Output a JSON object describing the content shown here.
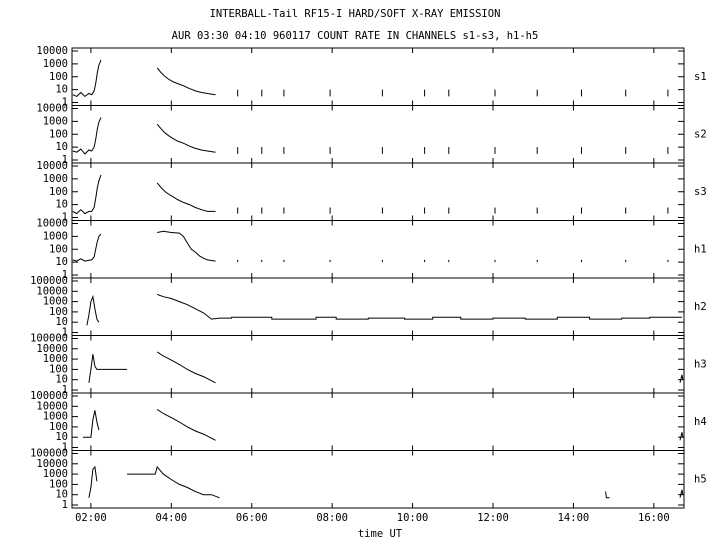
{
  "chart_data": [
    {
      "type": "line",
      "title": "INTERBALL-Tail RF15-I HARD/SOFT X-RAY EMISSION",
      "subtitle": "AUR 03:30 04:10 960117  COUNT RATE IN CHANNELS s1-s3, h1-h5",
      "label": "s1",
      "log": true,
      "color": "#000000",
      "xlim": [
        1.53,
        16.75
      ],
      "ylim": [
        1,
        10000
      ],
      "yticks": [
        1,
        10,
        100,
        1000,
        10000
      ],
      "x": [
        1.55,
        1.65,
        1.75,
        1.85,
        1.95,
        2.02,
        2.08,
        2.12,
        2.16,
        2.2,
        2.25,
        3.0,
        3.65,
        3.75,
        3.85,
        3.95,
        4.05,
        4.15,
        4.3,
        4.45,
        4.6,
        4.75,
        4.9,
        5.1,
        5.3,
        5.65,
        5.65,
        5.7,
        6.25,
        6.25,
        6.3,
        6.8,
        6.8,
        6.85,
        7.95,
        7.95,
        8.0,
        9.25,
        9.25,
        9.3,
        10.3,
        10.3,
        10.35,
        10.9,
        10.9,
        10.95,
        12.05,
        12.05,
        12.1,
        13.1,
        13.1,
        13.15,
        14.2,
        14.2,
        14.25,
        15.3,
        15.3,
        15.35,
        16.35,
        16.35
      ],
      "values": [
        4,
        3,
        6,
        3,
        5,
        4,
        8,
        30,
        200,
        800,
        2000,
        null,
        500,
        200,
        100,
        60,
        40,
        30,
        20,
        12,
        8,
        6,
        5,
        4,
        null,
        3,
        10,
        null,
        3,
        10,
        null,
        3,
        10,
        null,
        3,
        10,
        null,
        3,
        10,
        null,
        3,
        10,
        null,
        3,
        10,
        null,
        3,
        10,
        null,
        3,
        10,
        null,
        3,
        10,
        null,
        3,
        10,
        null,
        3,
        10
      ]
    },
    {
      "type": "line",
      "label": "s2",
      "log": true,
      "color": "#000000",
      "xlim": [
        1.53,
        16.75
      ],
      "ylim": [
        1,
        10000
      ],
      "yticks": [
        1,
        10,
        100,
        1000,
        10000
      ],
      "x": [
        1.55,
        1.65,
        1.75,
        1.85,
        1.95,
        2.02,
        2.08,
        2.12,
        2.16,
        2.2,
        2.25,
        3.0,
        3.65,
        3.75,
        3.85,
        3.95,
        4.05,
        4.15,
        4.3,
        4.45,
        4.6,
        4.75,
        4.9,
        5.1,
        5.3,
        5.65,
        5.65,
        5.7,
        6.25,
        6.25,
        6.3,
        6.8,
        6.8,
        6.85,
        7.95,
        7.95,
        8.0,
        9.25,
        9.25,
        9.3,
        10.3,
        10.3,
        10.35,
        10.9,
        10.9,
        10.95,
        12.05,
        12.05,
        12.1,
        13.1,
        13.1,
        13.15,
        14.2,
        14.2,
        14.25,
        15.3,
        15.3,
        15.35,
        16.35,
        16.35
      ],
      "values": [
        5,
        4,
        7,
        3,
        6,
        5,
        10,
        40,
        250,
        900,
        2000,
        null,
        600,
        250,
        120,
        70,
        45,
        30,
        20,
        12,
        8,
        6,
        5,
        4,
        null,
        3,
        10,
        null,
        3,
        10,
        null,
        3,
        10,
        null,
        3,
        10,
        null,
        3,
        10,
        null,
        3,
        10,
        null,
        3,
        10,
        null,
        3,
        10,
        null,
        3,
        10,
        null,
        3,
        10,
        null,
        3,
        10,
        null,
        3,
        10
      ]
    },
    {
      "type": "line",
      "label": "s3",
      "log": true,
      "color": "#000000",
      "xlim": [
        1.53,
        16.75
      ],
      "ylim": [
        1,
        10000
      ],
      "yticks": [
        1,
        10,
        100,
        1000,
        10000
      ],
      "x": [
        1.55,
        1.65,
        1.75,
        1.85,
        1.95,
        2.02,
        2.08,
        2.12,
        2.16,
        2.2,
        2.25,
        3.0,
        3.65,
        3.75,
        3.85,
        3.95,
        4.05,
        4.15,
        4.3,
        4.45,
        4.6,
        4.75,
        4.9,
        5.1,
        5.3,
        5.65,
        5.65,
        5.7,
        6.25,
        6.25,
        6.3,
        6.8,
        6.8,
        6.85,
        7.95,
        7.95,
        8.0,
        9.25,
        9.25,
        9.3,
        10.3,
        10.3,
        10.35,
        10.9,
        10.9,
        10.95,
        12.05,
        12.05,
        12.1,
        13.1,
        13.1,
        13.15,
        14.2,
        14.2,
        14.25,
        15.3,
        15.3,
        15.35,
        16.35,
        16.35
      ],
      "values": [
        3,
        2,
        4,
        2,
        3,
        3,
        6,
        30,
        200,
        700,
        2000,
        null,
        500,
        200,
        100,
        60,
        40,
        25,
        15,
        10,
        6,
        4,
        3,
        3,
        null,
        2,
        6,
        null,
        2,
        6,
        null,
        2,
        6,
        null,
        2,
        6,
        null,
        2,
        6,
        null,
        2,
        6,
        null,
        2,
        6,
        null,
        2,
        6,
        null,
        2,
        6,
        null,
        2,
        6,
        null,
        2,
        6,
        null,
        2,
        6
      ]
    },
    {
      "type": "line",
      "label": "h1",
      "log": true,
      "color": "#000000",
      "xlim": [
        1.53,
        16.75
      ],
      "ylim": [
        1,
        10000
      ],
      "yticks": [
        1,
        10,
        100,
        1000,
        10000
      ],
      "x": [
        1.55,
        1.65,
        1.75,
        1.85,
        1.95,
        2.02,
        2.08,
        2.12,
        2.16,
        2.2,
        2.25,
        3.0,
        3.65,
        3.8,
        4.0,
        4.2,
        4.3,
        4.4,
        4.5,
        4.6,
        4.7,
        4.8,
        4.9,
        5.1,
        5.3,
        5.65,
        5.65,
        5.7,
        6.25,
        6.25,
        6.3,
        6.8,
        6.8,
        6.85,
        7.95,
        7.95,
        8.0,
        9.25,
        9.25,
        9.3,
        10.3,
        10.3,
        10.35,
        10.9,
        10.9,
        10.95,
        12.05,
        12.05,
        12.1,
        13.1,
        13.1,
        13.15,
        14.2,
        14.2,
        14.25,
        15.3,
        15.3,
        15.35,
        16.35,
        16.35
      ],
      "values": [
        15,
        12,
        18,
        12,
        14,
        15,
        25,
        100,
        400,
        1000,
        1500,
        null,
        2000,
        2500,
        2000,
        1800,
        1000,
        300,
        100,
        60,
        30,
        20,
        15,
        12,
        null,
        10,
        15,
        null,
        10,
        15,
        null,
        10,
        15,
        null,
        10,
        15,
        null,
        10,
        15,
        null,
        10,
        15,
        null,
        10,
        15,
        null,
        10,
        15,
        null,
        10,
        15,
        null,
        10,
        15,
        null,
        10,
        15,
        null,
        10,
        15
      ]
    },
    {
      "type": "line",
      "label": "h2",
      "log": true,
      "color": "#000000",
      "xlim": [
        1.53,
        16.75
      ],
      "ylim": [
        1,
        100000
      ],
      "yticks": [
        1,
        10,
        100,
        1000,
        10000,
        100000
      ],
      "x": [
        1.9,
        1.95,
        2.0,
        2.05,
        2.1,
        2.15,
        2.2,
        3.0,
        3.65,
        3.8,
        4.0,
        4.2,
        4.4,
        4.6,
        4.8,
        4.9,
        5.0,
        5.2,
        5.5,
        5.5,
        6.5,
        6.5,
        7.6,
        7.6,
        8.1,
        8.1,
        8.9,
        8.9,
        9.8,
        9.8,
        10.5,
        10.5,
        11.2,
        11.2,
        12.0,
        12.0,
        12.8,
        12.8,
        13.6,
        13.6,
        14.4,
        14.4,
        15.2,
        15.2,
        15.9,
        15.9,
        16.7
      ],
      "values": [
        5,
        50,
        1000,
        3000,
        200,
        20,
        10,
        null,
        5000,
        3000,
        2000,
        1000,
        500,
        200,
        80,
        40,
        20,
        25,
        25,
        30,
        30,
        20,
        20,
        30,
        30,
        20,
        20,
        25,
        25,
        20,
        20,
        30,
        30,
        20,
        20,
        25,
        25,
        20,
        20,
        30,
        30,
        20,
        20,
        25,
        25,
        30,
        30
      ]
    },
    {
      "type": "line",
      "label": "h3",
      "log": true,
      "color": "#000000",
      "xlim": [
        1.53,
        16.75
      ],
      "ylim": [
        1,
        100000
      ],
      "yticks": [
        1,
        10,
        100,
        1000,
        10000,
        100000
      ],
      "x": [
        1.95,
        2.0,
        2.05,
        2.1,
        2.15,
        2.9,
        3.0,
        3.65,
        3.8,
        4.0,
        4.2,
        4.4,
        4.6,
        4.8,
        4.95,
        5.1,
        5.5,
        16.65,
        16.7,
        16.72
      ],
      "values": [
        5,
        100,
        3000,
        200,
        100,
        100,
        null,
        5000,
        2000,
        800,
        300,
        100,
        40,
        20,
        10,
        5,
        null,
        5,
        30,
        10
      ]
    },
    {
      "type": "line",
      "label": "h4",
      "log": true,
      "color": "#000000",
      "xlim": [
        1.53,
        16.75
      ],
      "ylim": [
        1,
        100000
      ],
      "yticks": [
        1,
        10,
        100,
        1000,
        10000,
        100000
      ],
      "x": [
        1.8,
        2.0,
        2.05,
        2.1,
        2.15,
        2.2,
        3.0,
        3.65,
        3.8,
        4.0,
        4.2,
        4.4,
        4.6,
        4.8,
        4.95,
        5.1,
        5.5,
        16.65,
        16.7,
        16.72
      ],
      "values": [
        10,
        10,
        500,
        4000,
        300,
        50,
        null,
        5000,
        2000,
        800,
        300,
        100,
        40,
        20,
        10,
        5,
        null,
        5,
        30,
        10
      ]
    },
    {
      "type": "line",
      "label": "h5",
      "log": true,
      "color": "#000000",
      "xlim": [
        1.53,
        16.75
      ],
      "ylim": [
        1,
        100000
      ],
      "yticks": [
        1,
        10,
        100,
        1000,
        10000,
        100000
      ],
      "xticks": [
        {
          "value": 2,
          "label": "02:00"
        },
        {
          "value": 4,
          "label": "04:00"
        },
        {
          "value": 6,
          "label": "06:00"
        },
        {
          "value": 8,
          "label": "08:00"
        },
        {
          "value": 10,
          "label": "10:00"
        },
        {
          "value": 12,
          "label": "12:00"
        },
        {
          "value": 14,
          "label": "14:00"
        },
        {
          "value": 16,
          "label": "16:00"
        }
      ],
      "xlabel": "time UT",
      "x": [
        1.95,
        2.0,
        2.05,
        2.1,
        2.15,
        2.2,
        2.9,
        3.6,
        3.65,
        3.8,
        4.0,
        4.2,
        4.4,
        4.6,
        4.8,
        5.0,
        5.2,
        5.3,
        14.8,
        14.82,
        14.85,
        14.9,
        16.6,
        16.65,
        16.7,
        16.72
      ],
      "values": [
        5,
        50,
        3000,
        5000,
        200,
        null,
        1000,
        1000,
        5000,
        1000,
        300,
        100,
        50,
        20,
        10,
        10,
        5,
        null,
        20,
        5,
        5,
        5,
        null,
        5,
        30,
        10
      ]
    }
  ]
}
